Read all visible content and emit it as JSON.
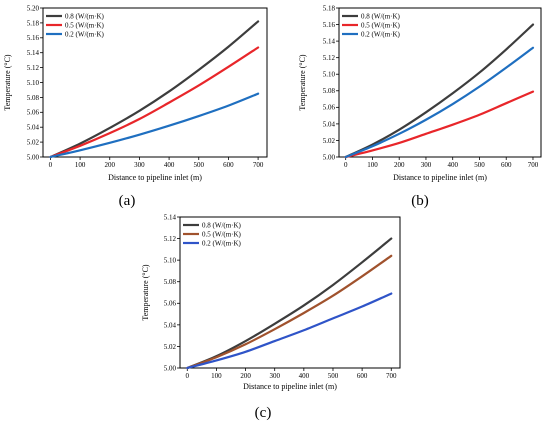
{
  "chart_data": [
    {
      "panel": "(a)",
      "type": "line",
      "xlabel": "Distance to pipeline inlet (m)",
      "ylabel": "Temperature (°C)",
      "xlim": [
        -25,
        730
      ],
      "ylim": [
        5.0,
        5.2
      ],
      "xticks": [
        0,
        100,
        200,
        300,
        400,
        500,
        600,
        700
      ],
      "yticks": [
        5.0,
        5.02,
        5.04,
        5.06,
        5.08,
        5.1,
        5.12,
        5.14,
        5.16,
        5.18,
        5.2
      ],
      "legend_position": "top-left",
      "series": [
        {
          "name": "0.8 (W/(m·K)",
          "color": "#3d3d3d",
          "x": [
            0,
            100,
            200,
            300,
            400,
            500,
            600,
            700
          ],
          "y": [
            5.0,
            5.018,
            5.039,
            5.062,
            5.088,
            5.117,
            5.148,
            5.182
          ]
        },
        {
          "name": "0.5 (W/(m·K)",
          "color": "#e8262a",
          "x": [
            0,
            100,
            200,
            300,
            400,
            500,
            600,
            700
          ],
          "y": [
            5.0,
            5.015,
            5.032,
            5.051,
            5.073,
            5.096,
            5.121,
            5.147
          ]
        },
        {
          "name": "0.2 (W/(m·K)",
          "color": "#1f6fc0",
          "x": [
            0,
            100,
            200,
            300,
            400,
            500,
            600,
            700
          ],
          "y": [
            5.0,
            5.009,
            5.019,
            5.03,
            5.042,
            5.055,
            5.069,
            5.085
          ]
        }
      ]
    },
    {
      "panel": "(b)",
      "type": "line",
      "xlabel": "Distance to pipeline inlet (m)",
      "ylabel": "Temperature (°C)",
      "xlim": [
        -25,
        730
      ],
      "ylim": [
        5.0,
        5.18
      ],
      "xticks": [
        0,
        100,
        200,
        300,
        400,
        500,
        600,
        700
      ],
      "yticks": [
        5.0,
        5.02,
        5.04,
        5.06,
        5.08,
        5.1,
        5.12,
        5.14,
        5.16,
        5.18
      ],
      "legend_position": "top-left",
      "series": [
        {
          "name": "0.8 (W/(m·K)",
          "color": "#3d3d3d",
          "x": [
            0,
            100,
            200,
            300,
            400,
            500,
            600,
            700
          ],
          "y": [
            5.0,
            5.015,
            5.033,
            5.054,
            5.077,
            5.102,
            5.13,
            5.16
          ]
        },
        {
          "name": "0.5 (W/(m·K)",
          "color": "#e8262a",
          "x": [
            0,
            100,
            200,
            300,
            400,
            500,
            600,
            700
          ],
          "y": [
            5.0,
            5.008,
            5.017,
            5.028,
            5.039,
            5.051,
            5.065,
            5.079
          ]
        },
        {
          "name": "0.2 (W/(m·K)",
          "color": "#1f6fc0",
          "x": [
            0,
            100,
            200,
            300,
            400,
            500,
            600,
            700
          ],
          "y": [
            5.0,
            5.013,
            5.028,
            5.045,
            5.064,
            5.085,
            5.108,
            5.132
          ]
        }
      ]
    },
    {
      "panel": "(c)",
      "type": "line",
      "xlabel": "Distance to pipeline inlet (m)",
      "ylabel": "Temperature (°C)",
      "xlim": [
        -25,
        730
      ],
      "ylim": [
        5.0,
        5.14
      ],
      "xticks": [
        0,
        100,
        200,
        300,
        400,
        500,
        600,
        700
      ],
      "yticks": [
        5.0,
        5.02,
        5.04,
        5.06,
        5.08,
        5.1,
        5.12,
        5.14
      ],
      "legend_position": "top-left",
      "series": [
        {
          "name": "0.8 (W/(m·K)",
          "color": "#3d3d3d",
          "x": [
            0,
            100,
            200,
            300,
            400,
            500,
            600,
            700
          ],
          "y": [
            5.0,
            5.011,
            5.025,
            5.041,
            5.058,
            5.077,
            5.098,
            5.12
          ]
        },
        {
          "name": "0.5 (W/(m·K)",
          "color": "#a0522d",
          "x": [
            0,
            100,
            200,
            300,
            400,
            500,
            600,
            700
          ],
          "y": [
            5.0,
            5.01,
            5.022,
            5.036,
            5.051,
            5.067,
            5.085,
            5.104
          ]
        },
        {
          "name": "0.2 (W/(m·K)",
          "color": "#2f54c8",
          "x": [
            0,
            100,
            200,
            300,
            400,
            500,
            600,
            700
          ],
          "y": [
            5.0,
            5.007,
            5.015,
            5.025,
            5.035,
            5.046,
            5.057,
            5.069
          ]
        }
      ]
    }
  ]
}
